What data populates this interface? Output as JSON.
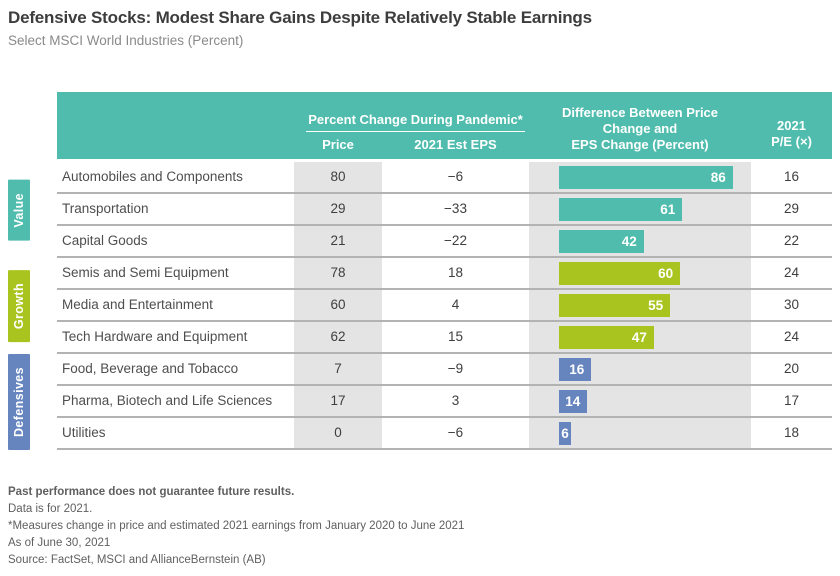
{
  "header": {
    "title": "Defensive Stocks: Modest Share Gains Despite Relatively Stable Earnings",
    "subtitle": "Select MSCI World Industries (Percent)"
  },
  "colors": {
    "header_teal": "#4fbcad",
    "value_teal": "#4fbcad",
    "growth_lime": "#aac41f",
    "defensives_blue": "#6685bf",
    "cell_gray": "#e5e4e4"
  },
  "table_header": {
    "pandemic_group": "Percent Change During Pandemic*",
    "col_price": "Price",
    "col_eps": "2021 Est EPS",
    "diff_line1": "Difference Between Price",
    "diff_line2": "Change and",
    "diff_line3": "EPS Change (Percent)",
    "pe_line1": "2021",
    "pe_line2": "P/E (×)"
  },
  "groups": [
    {
      "label": "Value",
      "color": "#4fbcad"
    },
    {
      "label": "Growth",
      "color": "#aac41f"
    },
    {
      "label": "Defensives",
      "color": "#6685bf"
    }
  ],
  "rows": [
    {
      "name": "Automobiles and Components",
      "price": "80",
      "eps": "−6",
      "diff": 86,
      "pe": "16",
      "group": 0
    },
    {
      "name": "Transportation",
      "price": "29",
      "eps": "−33",
      "diff": 61,
      "pe": "29",
      "group": 0
    },
    {
      "name": "Capital Goods",
      "price": "21",
      "eps": "−22",
      "diff": 42,
      "pe": "22",
      "group": 0
    },
    {
      "name": "Semis and Semi Equipment",
      "price": "78",
      "eps": "18",
      "diff": 60,
      "pe": "24",
      "group": 1
    },
    {
      "name": "Media and Entertainment",
      "price": "60",
      "eps": "4",
      "diff": 55,
      "pe": "30",
      "group": 1
    },
    {
      "name": "Tech Hardware and Equipment",
      "price": "62",
      "eps": "15",
      "diff": 47,
      "pe": "24",
      "group": 1
    },
    {
      "name": "Food, Beverage and Tobacco",
      "price": "7",
      "eps": "−9",
      "diff": 16,
      "pe": "20",
      "group": 2
    },
    {
      "name": "Pharma, Biotech and Life Sciences",
      "price": "17",
      "eps": "3",
      "diff": 14,
      "pe": "17",
      "group": 2
    },
    {
      "name": "Utilities",
      "price": "0",
      "eps": "−6",
      "diff": 6,
      "pe": "18",
      "group": 2
    }
  ],
  "footnotes": [
    "Past performance does not guarantee future results.",
    "Data is for 2021.",
    "*Measures change in price and estimated 2021 earnings from January 2020 to June 2021",
    "As of June 30, 2021",
    "Source: FactSet, MSCI and AllianceBernstein (AB)"
  ],
  "chart_data": {
    "type": "bar",
    "title": "Defensive Stocks: Modest Share Gains Despite Relatively Stable Earnings",
    "subtitle": "Select MSCI World Industries (Percent)",
    "orientation": "horizontal",
    "categories": [
      "Automobiles and Components",
      "Transportation",
      "Capital Goods",
      "Semis and Semi Equipment",
      "Media and Entertainment",
      "Tech Hardware and Equipment",
      "Food, Beverage and Tobacco",
      "Pharma, Biotech and Life Sciences",
      "Utilities"
    ],
    "category_groups": [
      {
        "label": "Value",
        "indices": [
          0,
          1,
          2
        ]
      },
      {
        "label": "Growth",
        "indices": [
          3,
          4,
          5
        ]
      },
      {
        "label": "Defensives",
        "indices": [
          6,
          7,
          8
        ]
      }
    ],
    "series": [
      {
        "name": "Price (Percent Change During Pandemic)",
        "values": [
          80,
          29,
          21,
          78,
          60,
          62,
          7,
          17,
          0
        ]
      },
      {
        "name": "2021 Est EPS (Percent Change During Pandemic)",
        "values": [
          -6,
          -33,
          -22,
          18,
          4,
          15,
          -9,
          3,
          -6
        ]
      },
      {
        "name": "Difference Between Price Change and EPS Change (Percent)",
        "values": [
          86,
          61,
          42,
          60,
          55,
          47,
          16,
          14,
          6
        ]
      },
      {
        "name": "2021 P/E (×)",
        "values": [
          16,
          29,
          22,
          24,
          30,
          24,
          20,
          17,
          18
        ]
      }
    ],
    "bar_series": "Difference Between Price Change and EPS Change (Percent)",
    "bar_xlim": [
      0,
      110
    ],
    "grid": false,
    "legend_position": "none",
    "data_labels": true
  }
}
